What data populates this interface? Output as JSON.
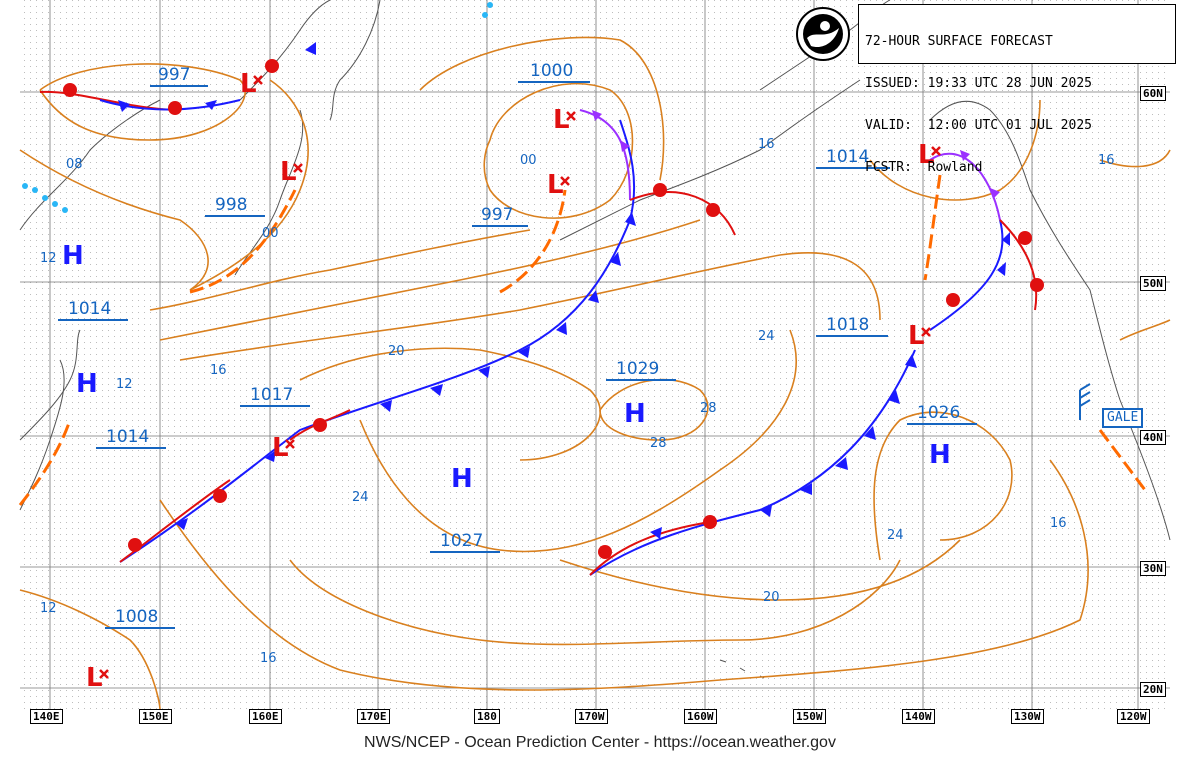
{
  "header": {
    "line1": "72-HOUR SURFACE FORECAST",
    "line2": "ISSUED: 19:33 UTC 28 JUN 2025",
    "line3": "VALID:  12:00 UTC 01 JUL 2025",
    "line4": "FCSTR:  Rowland"
  },
  "footer": "NWS/NCEP - Ocean Prediction Center - https://ocean.weather.gov",
  "lon_labels": [
    "140E",
    "150E",
    "160E",
    "170E",
    "180",
    "170W",
    "160W",
    "150W",
    "140W",
    "130W",
    "120W"
  ],
  "lat_labels": [
    "60N",
    "50N",
    "40N",
    "30N",
    "20N"
  ],
  "gale_label": "GALE",
  "pressure_labels": [
    "997",
    "1000",
    "1014",
    "998",
    "997",
    "1014",
    "1018",
    "1017",
    "1029",
    "1014",
    "1026",
    "1027",
    "1008"
  ],
  "isobar_labels": [
    "08",
    "00",
    "12",
    "00",
    "16",
    "16",
    "12",
    "16",
    "20",
    "24",
    "28",
    "28",
    "24",
    "24",
    "16",
    "20",
    "12",
    "16"
  ],
  "highs": [
    "H",
    "H",
    "H",
    "H",
    "H"
  ],
  "lows": [
    "L",
    "L",
    "L",
    "L",
    "L",
    "L",
    "L",
    "L"
  ],
  "colors": {
    "front_cold": "#1a1aff",
    "front_warm": "#e01010",
    "occluded": "#9b30ff",
    "isobar": "#d9801f",
    "label": "#1565c0"
  }
}
